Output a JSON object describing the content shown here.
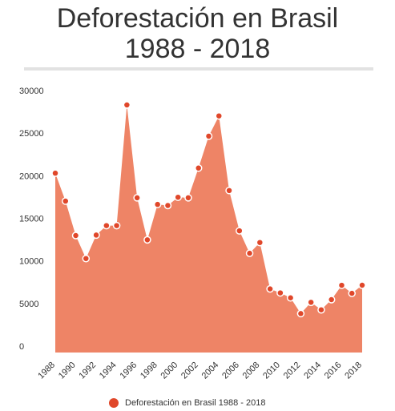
{
  "header": {
    "title_line1": "Deforestación en Brasil",
    "title_line2": "1988 - 2018"
  },
  "colors": {
    "area": "#ee8466",
    "point": "#e0472a",
    "point_stroke": "#ffffff"
  },
  "chart_data": {
    "type": "area",
    "title": "Deforestación en Brasil 1988 - 2018",
    "x": [
      1988,
      1989,
      1990,
      1991,
      1992,
      1993,
      1994,
      1995,
      1996,
      1997,
      1998,
      1999,
      2000,
      2001,
      2002,
      2003,
      2004,
      2005,
      2006,
      2007,
      2008,
      2009,
      2010,
      2011,
      2012,
      2013,
      2014,
      2015,
      2016,
      2017,
      2018
    ],
    "series": [
      {
        "name": "Deforestación en Brasil 1988 - 2018",
        "values": [
          21050,
          17770,
          13730,
          11030,
          13786,
          14896,
          14896,
          29059,
          18161,
          13227,
          17383,
          17259,
          18226,
          18165,
          21651,
          25396,
          27772,
          19014,
          14286,
          11651,
          12911,
          7464,
          7000,
          6418,
          4571,
          5891,
          5012,
          6207,
          7893,
          6947,
          7900
        ]
      }
    ],
    "x_ticks": [
      "1988",
      "1990",
      "1992",
      "1994",
      "1996",
      "1998",
      "2000",
      "2002",
      "2004",
      "2006",
      "2008",
      "2010",
      "2012",
      "2014",
      "2016",
      "2018"
    ],
    "y_ticks": [
      "0",
      "5000",
      "10000",
      "15000",
      "20000",
      "25000",
      "30000"
    ],
    "ylim": [
      0,
      30000
    ],
    "xlim": [
      1988,
      2018
    ],
    "grid": false,
    "legend": "bottom-center"
  }
}
